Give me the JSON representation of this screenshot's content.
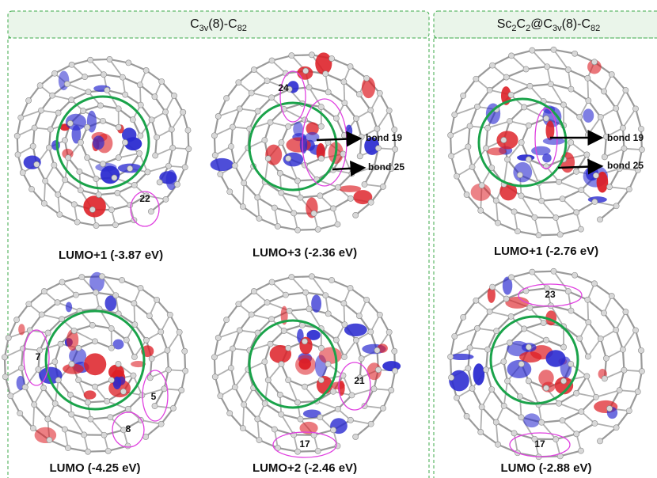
{
  "panels": [
    {
      "title": [
        "C",
        "3v",
        "(8)-C",
        "82"
      ],
      "orbitals": [
        {
          "caption": "LUMO+1 (-3.87 eV)",
          "labels": [
            "22"
          ]
        },
        {
          "caption": "LUMO+3 (-2.36 eV)",
          "labels": [
            "24",
            "bond 19",
            "bond 25"
          ]
        },
        {
          "caption": "LUMO (-4.25 eV)",
          "labels": [
            "7",
            "5",
            "8"
          ]
        },
        {
          "caption": "LUMO+2 (-2.46 eV)",
          "labels": [
            "21",
            "17"
          ]
        }
      ]
    },
    {
      "title": [
        "Sc",
        "2",
        "C",
        "2",
        "@C",
        "3v",
        "(8)-C",
        "82"
      ],
      "orbitals": [
        {
          "caption": "LUMO+1 (-2.76 eV)",
          "labels": [
            "bond 19",
            "bond 25"
          ]
        },
        {
          "caption": "LUMO (-2.88 eV)",
          "labels": [
            "23",
            "17"
          ]
        }
      ]
    }
  ]
}
